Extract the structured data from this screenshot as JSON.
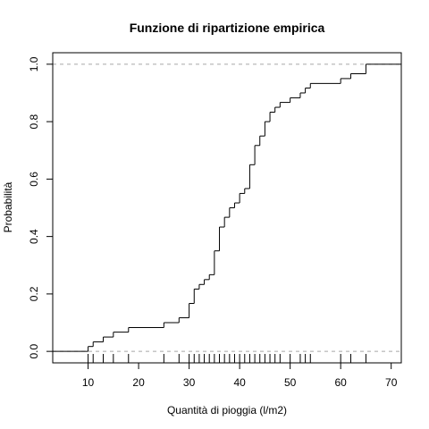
{
  "chart_data": {
    "type": "line",
    "style": "step",
    "title": "Funzione di ripartizione empirica",
    "xlabel": "Quantità di pioggia (l/m2)",
    "ylabel": "Probabilità",
    "xlim": [
      3,
      72
    ],
    "ylim": [
      -0.04,
      1.04
    ],
    "x_ticks": [
      10,
      20,
      30,
      40,
      50,
      60,
      70
    ],
    "x_tick_labels": [
      "10",
      "20",
      "30",
      "40",
      "50",
      "60",
      "70"
    ],
    "y_ticks": [
      0.0,
      0.2,
      0.4,
      0.6,
      0.8,
      1.0
    ],
    "y_tick_labels": [
      "0.0",
      "0.2",
      "0.4",
      "0.6",
      "0.8",
      "1.0"
    ],
    "reference_lines_y": [
      0,
      1
    ],
    "grid": false,
    "steps": [
      {
        "x": 10,
        "y": 0.017
      },
      {
        "x": 11,
        "y": 0.033
      },
      {
        "x": 13,
        "y": 0.05
      },
      {
        "x": 15,
        "y": 0.067
      },
      {
        "x": 18,
        "y": 0.083
      },
      {
        "x": 25,
        "y": 0.1
      },
      {
        "x": 28,
        "y": 0.117
      },
      {
        "x": 30,
        "y": 0.167
      },
      {
        "x": 31,
        "y": 0.217
      },
      {
        "x": 32,
        "y": 0.233
      },
      {
        "x": 33,
        "y": 0.25
      },
      {
        "x": 34,
        "y": 0.267
      },
      {
        "x": 35,
        "y": 0.35
      },
      {
        "x": 36,
        "y": 0.433
      },
      {
        "x": 37,
        "y": 0.467
      },
      {
        "x": 38,
        "y": 0.5
      },
      {
        "x": 39,
        "y": 0.517
      },
      {
        "x": 40,
        "y": 0.55
      },
      {
        "x": 41,
        "y": 0.567
      },
      {
        "x": 42,
        "y": 0.65
      },
      {
        "x": 43,
        "y": 0.717
      },
      {
        "x": 44,
        "y": 0.75
      },
      {
        "x": 45,
        "y": 0.8
      },
      {
        "x": 46,
        "y": 0.833
      },
      {
        "x": 47,
        "y": 0.85
      },
      {
        "x": 48,
        "y": 0.867
      },
      {
        "x": 50,
        "y": 0.883
      },
      {
        "x": 52,
        "y": 0.9
      },
      {
        "x": 53,
        "y": 0.917
      },
      {
        "x": 54,
        "y": 0.933
      },
      {
        "x": 60,
        "y": 0.95
      },
      {
        "x": 62,
        "y": 0.967
      },
      {
        "x": 65,
        "y": 1.0
      }
    ],
    "step_end_x": 72,
    "rug": [
      10,
      11,
      13,
      15,
      18,
      25,
      28,
      30,
      31,
      32,
      33,
      34,
      35,
      36,
      37,
      38,
      39,
      40,
      41,
      42,
      43,
      44,
      45,
      46,
      47,
      48,
      50,
      52,
      53,
      54,
      60,
      62,
      65
    ]
  }
}
